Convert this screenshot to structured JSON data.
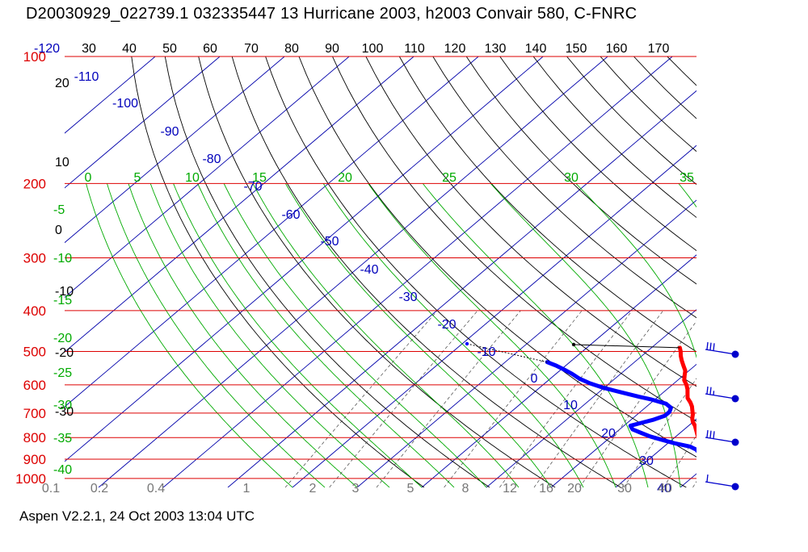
{
  "title": "D20030929_022739.1 032335447 13 Hurricane 2003, h2003 Convair 580, C-FNRC",
  "footer": "Aspen V2.2.1, 24 Oct 2003  13:04 UTC",
  "colors": {
    "pressure": "#dd0000",
    "isotherm_label": "#0000bb",
    "isotherm_line": "#0000aa",
    "dry_adiabat": "#000000",
    "moist_adiabat": "#00aa00",
    "mixing_ratio": "#444444",
    "temperature": "#ff0000",
    "dewpoint": "#0000ff",
    "wind_barb": "#0000cc"
  },
  "chart_data": {
    "type": "skew-t",
    "pressure_levels": [
      {
        "label": "100",
        "p": 100
      },
      {
        "label": "200",
        "p": 200
      },
      {
        "label": "300",
        "p": 300
      },
      {
        "label": "400",
        "p": 400
      },
      {
        "label": "500",
        "p": 500
      },
      {
        "label": "600",
        "p": 600
      },
      {
        "label": "700",
        "p": 700
      },
      {
        "label": "800",
        "p": 800
      },
      {
        "label": "900",
        "p": 900
      },
      {
        "label": "1000",
        "p": 1000
      }
    ],
    "top_labels": [
      "-120",
      "30",
      "40",
      "50",
      "60",
      "70",
      "80",
      "90",
      "100",
      "110",
      "120",
      "130",
      "140",
      "150",
      "160",
      "170"
    ],
    "dry_adiabat_labels": [
      "20",
      "10",
      "0",
      "-10",
      "-20",
      "-30"
    ],
    "moist_left_labels": [
      "-5",
      "-10",
      "-15",
      "-20",
      "-25",
      "-30",
      "-35",
      "-40"
    ],
    "moist_top_labels": [
      "0",
      "5",
      "10",
      "15",
      "20",
      "25",
      "30",
      "35"
    ],
    "isotherm_labels": [
      "-110",
      "-100",
      "-90",
      "-80",
      "-70",
      "-60",
      "-50",
      "-40",
      "-30",
      "-20",
      "-10",
      "0",
      "10",
      "20",
      "30",
      "40"
    ],
    "mixing_ratio_labels": [
      "0.1",
      "0.2",
      "0.4",
      "1",
      "2",
      "3",
      "5",
      "8",
      "12",
      "16",
      "20",
      "30",
      "40"
    ],
    "temperature_profile": [
      {
        "p": 1004,
        "t": 25.8
      },
      {
        "p": 990,
        "t": 25.0
      },
      {
        "p": 975,
        "t": 24.0
      },
      {
        "p": 960,
        "t": 22.8
      },
      {
        "p": 945,
        "t": 21.8
      },
      {
        "p": 930,
        "t": 20.8
      },
      {
        "p": 915,
        "t": 20.0
      },
      {
        "p": 900,
        "t": 19.2
      },
      {
        "p": 885,
        "t": 18.6
      },
      {
        "p": 870,
        "t": 18.0
      },
      {
        "p": 855,
        "t": 17.0
      },
      {
        "p": 840,
        "t": 16.2
      },
      {
        "p": 825,
        "t": 15.2
      },
      {
        "p": 810,
        "t": 14.2
      },
      {
        "p": 795,
        "t": 13.4
      },
      {
        "p": 780,
        "t": 12.6
      },
      {
        "p": 765,
        "t": 11.8
      },
      {
        "p": 750,
        "t": 11.0
      },
      {
        "p": 735,
        "t": 10.0
      },
      {
        "p": 720,
        "t": 9.2
      },
      {
        "p": 705,
        "t": 8.6
      },
      {
        "p": 690,
        "t": 7.8
      },
      {
        "p": 675,
        "t": 7.0
      },
      {
        "p": 660,
        "t": 6.0
      },
      {
        "p": 645,
        "t": 4.8
      },
      {
        "p": 630,
        "t": 4.0
      },
      {
        "p": 615,
        "t": 3.2
      },
      {
        "p": 600,
        "t": 2.2
      },
      {
        "p": 585,
        "t": 1.0
      },
      {
        "p": 570,
        "t": 0.2
      },
      {
        "p": 555,
        "t": -0.6
      },
      {
        "p": 540,
        "t": -1.8
      },
      {
        "p": 525,
        "t": -3.0
      },
      {
        "p": 512,
        "t": -4.0
      },
      {
        "p": 500,
        "t": -4.8
      },
      {
        "p": 490,
        "t": -5.6
      }
    ],
    "dewpoint_profile": [
      {
        "p": 1004,
        "t": 24.5
      },
      {
        "p": 990,
        "t": 23.8
      },
      {
        "p": 975,
        "t": 23.0
      },
      {
        "p": 960,
        "t": 22.0
      },
      {
        "p": 945,
        "t": 21.0
      },
      {
        "p": 930,
        "t": 20.0
      },
      {
        "p": 915,
        "t": 19.0
      },
      {
        "p": 900,
        "t": 18.2
      },
      {
        "p": 885,
        "t": 17.4
      },
      {
        "p": 870,
        "t": 16.6
      },
      {
        "p": 855,
        "t": 15.6
      },
      {
        "p": 840,
        "t": 14.0
      },
      {
        "p": 825,
        "t": 11.0
      },
      {
        "p": 810,
        "t": 8.5
      },
      {
        "p": 795,
        "t": 6.0
      },
      {
        "p": 780,
        "t": 4.0
      },
      {
        "p": 765,
        "t": 2.0
      },
      {
        "p": 750,
        "t": 1.0
      },
      {
        "p": 740,
        "t": 2.0
      },
      {
        "p": 725,
        "t": 3.5
      },
      {
        "p": 710,
        "t": 4.5
      },
      {
        "p": 695,
        "t": 4.5
      },
      {
        "p": 680,
        "t": 4.0
      },
      {
        "p": 665,
        "t": 2.5
      },
      {
        "p": 650,
        "t": -0.5
      },
      {
        "p": 640,
        "t": -3.0
      },
      {
        "p": 625,
        "t": -6.5
      },
      {
        "p": 610,
        "t": -10.0
      },
      {
        "p": 595,
        "t": -13.0
      },
      {
        "p": 580,
        "t": -15.5
      },
      {
        "p": 565,
        "t": -17.5
      },
      {
        "p": 552,
        "t": -19.5
      },
      {
        "p": 540,
        "t": -21.5
      },
      {
        "p": 530,
        "t": -23.5
      }
    ],
    "wind_barbs": [
      {
        "p": 500,
        "speed_kt": 30,
        "dir_deg": 270
      },
      {
        "p": 650,
        "speed_kt": 25,
        "dir_deg": 270
      },
      {
        "p": 850,
        "speed_kt": 30,
        "dir_deg": 270
      },
      {
        "p": 1000,
        "speed_kt": 10,
        "dir_deg": 270
      }
    ]
  }
}
